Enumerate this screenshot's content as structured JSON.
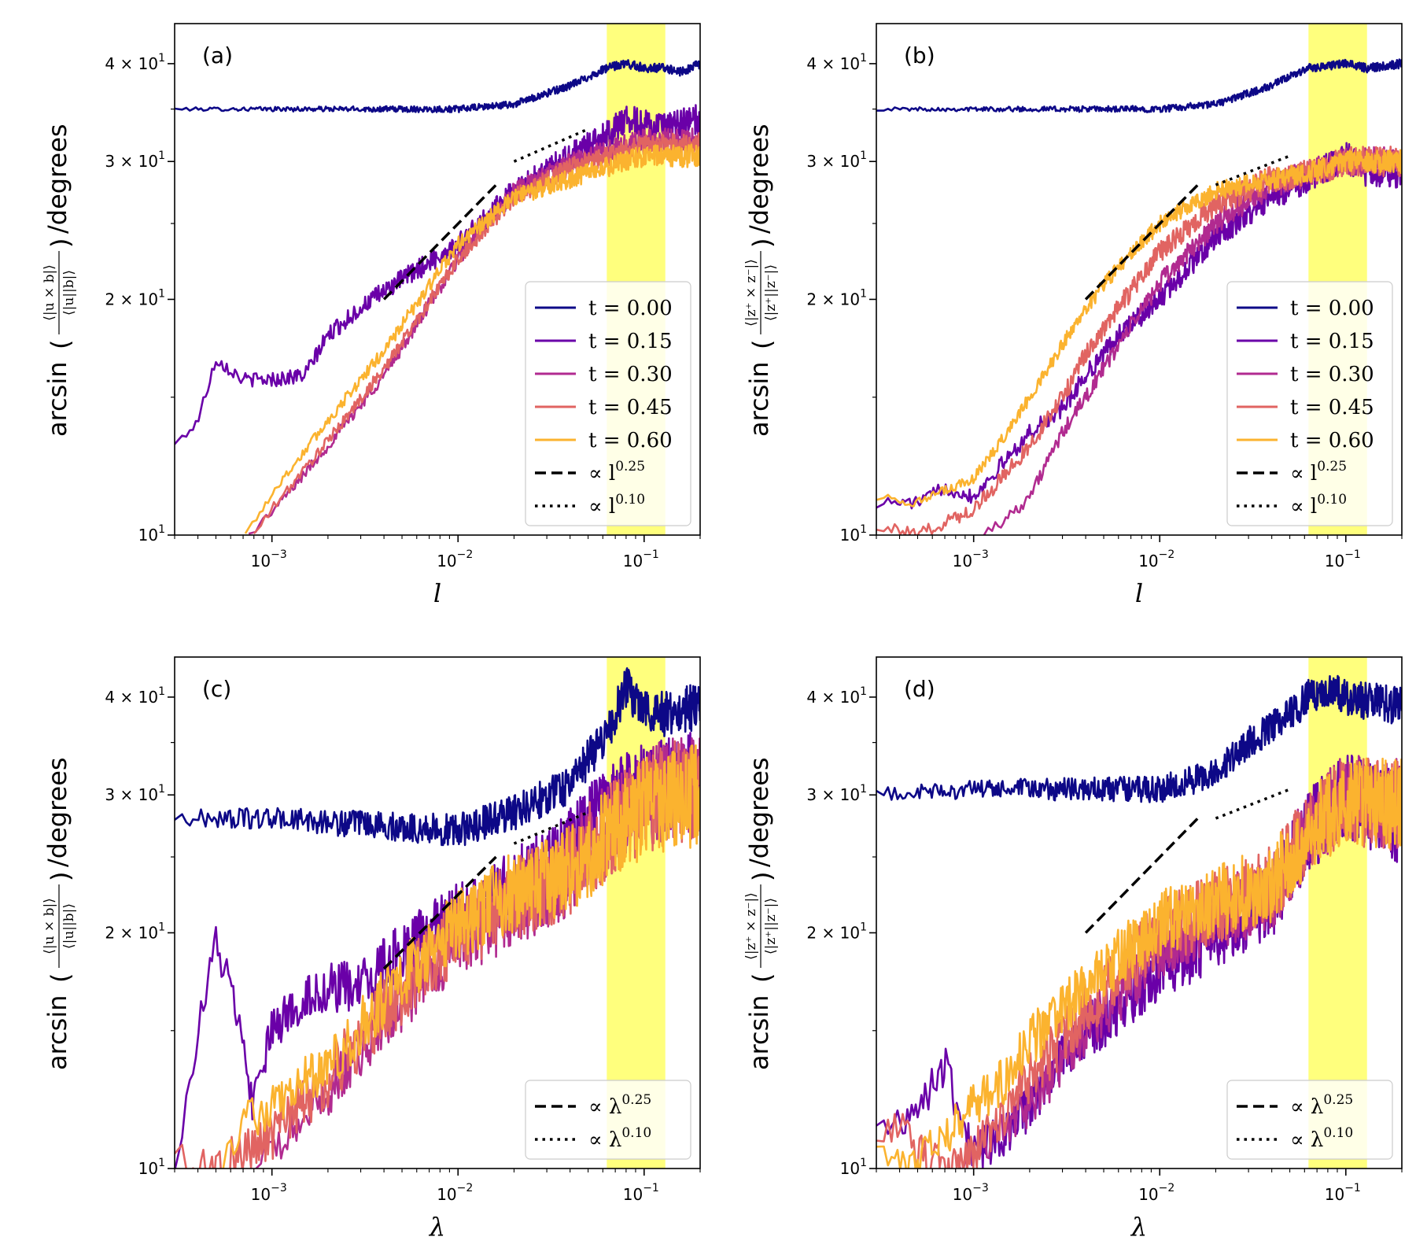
{
  "figure": {
    "colors": {
      "t0": "#0d0887",
      "t15": "#6a00a8",
      "t30": "#b12a90",
      "t45": "#e16462",
      "t60": "#fbb32f",
      "band": "#ffff66",
      "ref": "#000000"
    }
  },
  "chart_data": [
    {
      "type": "line",
      "panel_label": "(a)",
      "xlabel": "l",
      "ylabel": "/degrees",
      "ylabel_prefix": "arcsin",
      "ylabel_num": "⟨|u × b|⟩",
      "ylabel_den": "⟨|u||b|⟩",
      "xscale": "log",
      "yscale": "log",
      "xlim": [
        0.0003,
        0.2
      ],
      "ylim": [
        10,
        45
      ],
      "x_tick_labels": [
        "10",
        "10",
        "10"
      ],
      "x_tick_exponents": [
        "−3",
        "−2",
        "−1"
      ],
      "y_tick_labels": [
        "10",
        "2 × 10",
        "3 × 10",
        "4 × 10"
      ],
      "y_tick_exponent": "1",
      "shaded_band": [
        0.063,
        0.13
      ],
      "legend": [
        {
          "label": "t = 0.00",
          "style": "solid",
          "color_key": "t0"
        },
        {
          "label": "t = 0.15",
          "style": "solid",
          "color_key": "t15"
        },
        {
          "label": "t = 0.30",
          "style": "solid",
          "color_key": "t30"
        },
        {
          "label": "t = 0.45",
          "style": "solid",
          "color_key": "t45"
        },
        {
          "label": "t = 0.60",
          "style": "solid",
          "color_key": "t60"
        },
        {
          "label": "∝ l",
          "sup": "0.25",
          "style": "dashed",
          "color_key": "ref"
        },
        {
          "label": "∝ l",
          "sup": "0.10",
          "style": "dotted",
          "color_key": "ref"
        }
      ],
      "reference_lines": [
        {
          "style": "dashed",
          "x": [
            0.004,
            0.016
          ],
          "y": [
            20.0,
            28.0
          ]
        },
        {
          "style": "dotted",
          "x": [
            0.02,
            0.05
          ],
          "y": [
            30.0,
            33.0
          ]
        }
      ],
      "series": [
        {
          "name": "t = 0.00",
          "color_key": "t0",
          "noise": 0.006,
          "x": [
            0.0003,
            0.001,
            0.003,
            0.01,
            0.02,
            0.04,
            0.063,
            0.08,
            0.1,
            0.13,
            0.16,
            0.2
          ],
          "y": [
            35,
            35,
            35,
            35,
            35.5,
            37.5,
            39.5,
            40,
            39.5,
            39.5,
            39,
            40
          ]
        },
        {
          "name": "t = 0.15",
          "color_key": "t15",
          "noise": 0.02,
          "x": [
            0.0003,
            0.0004,
            0.0005,
            0.0007,
            0.001,
            0.0015,
            0.002,
            0.003,
            0.004,
            0.006,
            0.01,
            0.02,
            0.04,
            0.063,
            0.08,
            0.1,
            0.13,
            0.16,
            0.2
          ],
          "y": [
            13,
            14,
            16.8,
            15.8,
            15.8,
            16,
            18,
            19.5,
            20.5,
            21.8,
            23.5,
            27.5,
            30.5,
            32.5,
            34,
            33.5,
            33,
            33.5,
            34
          ]
        },
        {
          "name": "t = 0.30",
          "color_key": "t30",
          "noise": 0.015,
          "x": [
            0.00075,
            0.001,
            0.002,
            0.004,
            0.01,
            0.02,
            0.04,
            0.063,
            0.1,
            0.13,
            0.2
          ],
          "y": [
            10,
            10.7,
            13,
            16,
            22.5,
            27.5,
            30,
            31,
            32,
            32,
            32
          ]
        },
        {
          "name": "t = 0.45",
          "color_key": "t45",
          "noise": 0.015,
          "x": [
            0.0008,
            0.001,
            0.002,
            0.004,
            0.01,
            0.02,
            0.04,
            0.063,
            0.1,
            0.13,
            0.2
          ],
          "y": [
            10,
            10.8,
            13.2,
            16.3,
            22.5,
            27,
            29.5,
            30.5,
            31.5,
            31.5,
            31.5
          ]
        },
        {
          "name": "t = 0.60",
          "color_key": "t60",
          "noise": 0.015,
          "x": [
            0.00072,
            0.001,
            0.002,
            0.004,
            0.01,
            0.02,
            0.04,
            0.063,
            0.1,
            0.13,
            0.2
          ],
          "y": [
            10,
            11.3,
            14,
            17.2,
            23.5,
            27,
            28.5,
            29.5,
            30.5,
            30.5,
            30.5
          ]
        }
      ]
    },
    {
      "type": "line",
      "panel_label": "(b)",
      "xlabel": "l",
      "ylabel": "/degrees",
      "ylabel_prefix": "arcsin",
      "ylabel_num": "⟨|z⁺ × z⁻|⟩",
      "ylabel_den": "⟨|z⁺||z⁻|⟩",
      "xscale": "log",
      "yscale": "log",
      "xlim": [
        0.0003,
        0.2
      ],
      "ylim": [
        10,
        45
      ],
      "x_tick_labels": [
        "10",
        "10",
        "10"
      ],
      "x_tick_exponents": [
        "−3",
        "−2",
        "−1"
      ],
      "y_tick_labels": [
        "10",
        "2 × 10",
        "3 × 10",
        "4 × 10"
      ],
      "y_tick_exponent": "1",
      "shaded_band": [
        0.063,
        0.13
      ],
      "legend": [
        {
          "label": "t = 0.00",
          "style": "solid",
          "color_key": "t0"
        },
        {
          "label": "t = 0.15",
          "style": "solid",
          "color_key": "t15"
        },
        {
          "label": "t = 0.30",
          "style": "solid",
          "color_key": "t30"
        },
        {
          "label": "t = 0.45",
          "style": "solid",
          "color_key": "t45"
        },
        {
          "label": "t = 0.60",
          "style": "solid",
          "color_key": "t60"
        },
        {
          "label": "∝ l",
          "sup": "0.25",
          "style": "dashed",
          "color_key": "ref"
        },
        {
          "label": "∝ l",
          "sup": "0.10",
          "style": "dotted",
          "color_key": "ref"
        }
      ],
      "reference_lines": [
        {
          "style": "dashed",
          "x": [
            0.004,
            0.016
          ],
          "y": [
            20.0,
            28.0
          ]
        },
        {
          "style": "dotted",
          "x": [
            0.02,
            0.05
          ],
          "y": [
            28.0,
            30.5
          ]
        }
      ],
      "series": [
        {
          "name": "t = 0.00",
          "color_key": "t0",
          "noise": 0.006,
          "x": [
            0.0003,
            0.001,
            0.003,
            0.01,
            0.02,
            0.04,
            0.063,
            0.1,
            0.13,
            0.2
          ],
          "y": [
            35,
            35,
            35,
            35,
            35.5,
            37.5,
            39.5,
            40,
            39.5,
            40
          ]
        },
        {
          "name": "t = 0.15",
          "color_key": "t15",
          "noise": 0.02,
          "x": [
            0.0003,
            0.0005,
            0.0007,
            0.001,
            0.0015,
            0.002,
            0.003,
            0.004,
            0.006,
            0.01,
            0.02,
            0.04,
            0.063,
            0.1,
            0.13,
            0.2
          ],
          "y": [
            11,
            11,
            11.5,
            11.2,
            12.5,
            13.5,
            14.5,
            16,
            18,
            20,
            24,
            27,
            28.5,
            30.5,
            29,
            29
          ]
        },
        {
          "name": "t = 0.30",
          "color_key": "t30",
          "noise": 0.02,
          "x": [
            0.0011,
            0.0015,
            0.002,
            0.003,
            0.004,
            0.006,
            0.01,
            0.02,
            0.04,
            0.063,
            0.1,
            0.2
          ],
          "y": [
            10,
            10.5,
            11.2,
            13.5,
            15,
            17.5,
            21,
            25,
            28,
            29,
            30,
            30
          ]
        },
        {
          "name": "t = 0.45",
          "color_key": "t45",
          "noise": 0.02,
          "x": [
            0.0003,
            0.0005,
            0.001,
            0.0015,
            0.002,
            0.003,
            0.004,
            0.006,
            0.01,
            0.02,
            0.04,
            0.063,
            0.1,
            0.2
          ],
          "y": [
            10.3,
            10,
            10.8,
            12,
            13,
            15,
            17,
            19.5,
            23,
            26.5,
            28.5,
            29,
            30,
            30
          ]
        },
        {
          "name": "t = 0.60",
          "color_key": "t60",
          "noise": 0.015,
          "x": [
            0.0003,
            0.0005,
            0.001,
            0.0015,
            0.002,
            0.003,
            0.004,
            0.006,
            0.01,
            0.02,
            0.04,
            0.063,
            0.1,
            0.2
          ],
          "y": [
            11.2,
            11,
            11.8,
            13.5,
            15,
            17.5,
            19.5,
            22,
            25,
            27.5,
            28.5,
            29,
            30,
            30
          ]
        }
      ]
    },
    {
      "type": "line",
      "panel_label": "(c)",
      "xlabel": "λ",
      "ylabel": "/degrees",
      "ylabel_prefix": "arcsin",
      "ylabel_num": "⟨|u × b|⟩",
      "ylabel_den": "⟨|u||b|⟩",
      "xscale": "log",
      "yscale": "log",
      "xlim": [
        0.0003,
        0.2
      ],
      "ylim": [
        10,
        45
      ],
      "x_tick_labels": [
        "10",
        "10",
        "10"
      ],
      "x_tick_exponents": [
        "−3",
        "−2",
        "−1"
      ],
      "y_tick_labels": [
        "10",
        "2 × 10",
        "3 × 10",
        "4 × 10"
      ],
      "y_tick_exponent": "1",
      "shaded_band": [
        0.063,
        0.13
      ],
      "legend": [
        {
          "label": "∝ λ",
          "sup": "0.25",
          "style": "dashed",
          "color_key": "ref"
        },
        {
          "label": "∝ λ",
          "sup": "0.10",
          "style": "dotted",
          "color_key": "ref"
        }
      ],
      "reference_lines": [
        {
          "style": "dashed",
          "x": [
            0.004,
            0.016
          ],
          "y": [
            18.0,
            25.0
          ]
        },
        {
          "style": "dotted",
          "x": [
            0.02,
            0.05
          ],
          "y": [
            26.0,
            28.5
          ]
        }
      ],
      "series": [
        {
          "name": "t = 0.00",
          "color_key": "t0",
          "noise": 0.03,
          "x": [
            0.0003,
            0.001,
            0.003,
            0.01,
            0.02,
            0.04,
            0.063,
            0.08,
            0.1,
            0.13,
            0.2
          ],
          "y": [
            28,
            28,
            27.5,
            27,
            28.5,
            31,
            36,
            41,
            39,
            38,
            39
          ]
        },
        {
          "name": "t = 0.15",
          "color_key": "t15",
          "noise": 0.06,
          "x": [
            0.0003,
            0.0004,
            0.0005,
            0.0006,
            0.0008,
            0.001,
            0.0015,
            0.002,
            0.003,
            0.005,
            0.01,
            0.02,
            0.04,
            0.063,
            0.1,
            0.2
          ],
          "y": [
            10,
            15,
            19.5,
            17,
            12,
            15,
            16.5,
            17,
            17,
            19,
            21,
            23,
            26,
            29,
            31,
            32
          ]
        },
        {
          "name": "t = 0.30",
          "color_key": "t30",
          "noise": 0.07,
          "x": [
            0.0008,
            0.001,
            0.002,
            0.004,
            0.01,
            0.02,
            0.04,
            0.063,
            0.1,
            0.2
          ],
          "y": [
            10,
            10.5,
            12.5,
            15.5,
            19.5,
            21.5,
            24,
            27,
            30,
            31
          ]
        },
        {
          "name": "t = 0.45",
          "color_key": "t45",
          "noise": 0.07,
          "x": [
            0.0003,
            0.0004,
            0.0005,
            0.001,
            0.002,
            0.004,
            0.01,
            0.02,
            0.04,
            0.063,
            0.1,
            0.2
          ],
          "y": [
            10.5,
            10,
            10,
            11,
            13,
            16,
            20,
            22,
            24,
            27,
            29,
            31
          ]
        },
        {
          "name": "t = 0.60",
          "color_key": "t60",
          "noise": 0.07,
          "x": [
            0.0005,
            0.0007,
            0.001,
            0.002,
            0.004,
            0.01,
            0.02,
            0.04,
            0.063,
            0.1,
            0.2
          ],
          "y": [
            10,
            11.5,
            12,
            13.5,
            16.5,
            20.5,
            22.5,
            24,
            26.5,
            29,
            30
          ]
        }
      ]
    },
    {
      "type": "line",
      "panel_label": "(d)",
      "xlabel": "λ",
      "ylabel": "/degrees",
      "ylabel_prefix": "arcsin",
      "ylabel_num": "⟨|z⁺ × z⁻|⟩",
      "ylabel_den": "⟨|z⁺||z⁻|⟩",
      "xscale": "log",
      "yscale": "log",
      "xlim": [
        0.0003,
        0.2
      ],
      "ylim": [
        10,
        45
      ],
      "x_tick_labels": [
        "10",
        "10",
        "10"
      ],
      "x_tick_exponents": [
        "−3",
        "−2",
        "−1"
      ],
      "y_tick_labels": [
        "10",
        "2 × 10",
        "3 × 10",
        "4 × 10"
      ],
      "y_tick_exponent": "1",
      "shaded_band": [
        0.063,
        0.13
      ],
      "legend": [
        {
          "label": "∝ λ",
          "sup": "0.25",
          "style": "dashed",
          "color_key": "ref"
        },
        {
          "label": "∝ λ",
          "sup": "0.10",
          "style": "dotted",
          "color_key": "ref"
        }
      ],
      "reference_lines": [
        {
          "style": "dashed",
          "x": [
            0.004,
            0.016
          ],
          "y": [
            20.0,
            28.0
          ]
        },
        {
          "style": "dotted",
          "x": [
            0.02,
            0.05
          ],
          "y": [
            28.0,
            30.5
          ]
        }
      ],
      "series": [
        {
          "name": "t = 0.00",
          "color_key": "t0",
          "noise": 0.025,
          "x": [
            0.0003,
            0.001,
            0.003,
            0.01,
            0.02,
            0.03,
            0.05,
            0.063,
            0.08,
            0.1,
            0.13,
            0.2
          ],
          "y": [
            30,
            30.5,
            30.5,
            30.5,
            32,
            35,
            38,
            40,
            41,
            40,
            39.5,
            39
          ]
        },
        {
          "name": "t = 0.15",
          "color_key": "t15",
          "noise": 0.06,
          "x": [
            0.0003,
            0.0005,
            0.0007,
            0.001,
            0.0015,
            0.002,
            0.003,
            0.005,
            0.01,
            0.02,
            0.04,
            0.063,
            0.1,
            0.2
          ],
          "y": [
            11,
            12,
            13.5,
            10.5,
            11,
            12,
            14,
            15.5,
            18,
            20,
            22,
            27,
            30,
            28
          ]
        },
        {
          "name": "t = 0.30",
          "color_key": "t30",
          "noise": 0.06,
          "x": [
            0.0008,
            0.001,
            0.002,
            0.004,
            0.01,
            0.02,
            0.04,
            0.063,
            0.1,
            0.2
          ],
          "y": [
            10,
            10.5,
            12,
            15,
            19,
            21,
            22.5,
            27,
            30,
            29
          ]
        },
        {
          "name": "t = 0.45",
          "color_key": "t45",
          "noise": 0.06,
          "x": [
            0.0003,
            0.0004,
            0.0005,
            0.0007,
            0.001,
            0.002,
            0.004,
            0.01,
            0.02,
            0.04,
            0.063,
            0.1,
            0.2
          ],
          "y": [
            10.5,
            11.5,
            10.5,
            10,
            10.5,
            13,
            16,
            20,
            21.5,
            23,
            27,
            29.5,
            29
          ]
        },
        {
          "name": "t = 0.60",
          "color_key": "t60",
          "noise": 0.06,
          "x": [
            0.0003,
            0.0005,
            0.001,
            0.0015,
            0.002,
            0.004,
            0.01,
            0.02,
            0.04,
            0.063,
            0.1,
            0.2
          ],
          "y": [
            10.3,
            10.2,
            12,
            13,
            14.5,
            17,
            20.5,
            22,
            23,
            27,
            29.5,
            29
          ]
        }
      ]
    }
  ]
}
